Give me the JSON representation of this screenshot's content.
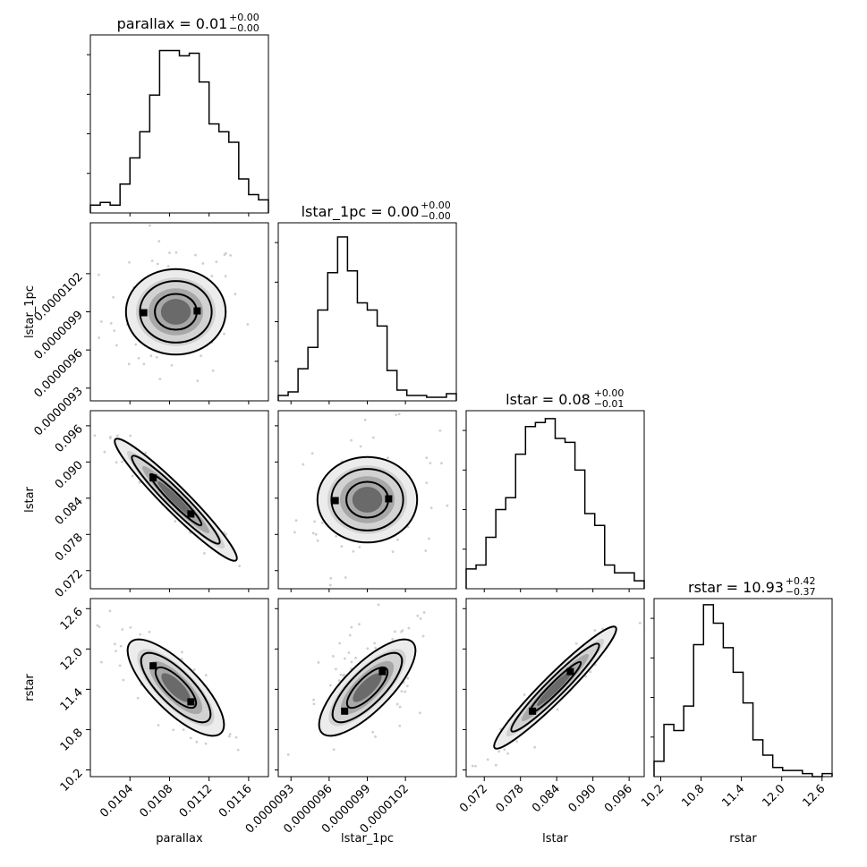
{
  "chart_data": {
    "type": "corner",
    "grid": false,
    "parameters": [
      {
        "name": "parallax",
        "xlabel": "parallax",
        "range": [
          0.01,
          0.0118
        ],
        "ticks": [
          "0.0104",
          "0.0108",
          "0.0112",
          "0.0116"
        ],
        "tick_values": [
          0.0104,
          0.0108,
          0.0112,
          0.0116
        ],
        "title": {
          "base": "parallax = 0.01",
          "plus": "+0.00",
          "minus": "−0.00"
        },
        "hist": [
          3,
          4,
          3,
          11,
          21,
          31,
          45,
          62,
          62,
          60,
          61,
          50,
          34,
          31,
          27,
          13,
          7,
          5
        ],
        "hist_max": 68
      },
      {
        "name": "lstar_1pc",
        "xlabel": "lstar_1pc",
        "range": [
          9.2e-07,
          1.06e-06
        ],
        "ticks": [
          "0.0000093",
          "0.0000096",
          "0.0000099",
          "0.0000102"
        ],
        "tick_values": [
          9.3e-07,
          9.6e-07,
          9.9e-07,
          1.02e-06
        ],
        "title": {
          "base": "lstar_1pc = 0.00",
          "plus": "+0.00",
          "minus": "−0.00"
        },
        "hist": [
          3,
          5,
          18,
          30,
          51,
          72,
          92,
          73,
          55,
          51,
          42,
          17,
          6,
          3,
          3,
          2,
          2,
          4
        ],
        "hist_max": 100
      },
      {
        "name": "lstar",
        "xlabel": "lstar",
        "range": [
          0.069,
          0.0985
        ],
        "ticks": [
          "0.072",
          "0.078",
          "0.084",
          "0.090",
          "0.096"
        ],
        "tick_values": [
          0.072,
          0.078,
          0.084,
          0.09,
          0.096
        ],
        "title": {
          "base": "lstar = 0.08",
          "plus": "+0.00",
          "minus": "−0.01"
        },
        "hist": [
          5,
          6,
          13,
          20,
          23,
          34,
          41,
          42,
          43,
          38,
          37,
          30,
          19,
          16,
          6,
          4,
          4,
          2
        ],
        "hist_max": 45
      },
      {
        "name": "rstar",
        "xlabel": "rstar",
        "range": [
          10.1,
          12.75
        ],
        "ticks": [
          "10.2",
          "10.8",
          "11.4",
          "12.0",
          "12.6"
        ],
        "tick_values": [
          10.2,
          10.8,
          11.4,
          12.0,
          12.6
        ],
        "title": {
          "base": "rstar = 10.93",
          "plus": "+0.42",
          "minus": "−0.37"
        },
        "hist": [
          5,
          17,
          15,
          23,
          43,
          56,
          50,
          42,
          34,
          24,
          12,
          7,
          3,
          2,
          2,
          1,
          0,
          1
        ],
        "hist_max": 58
      }
    ]
  }
}
